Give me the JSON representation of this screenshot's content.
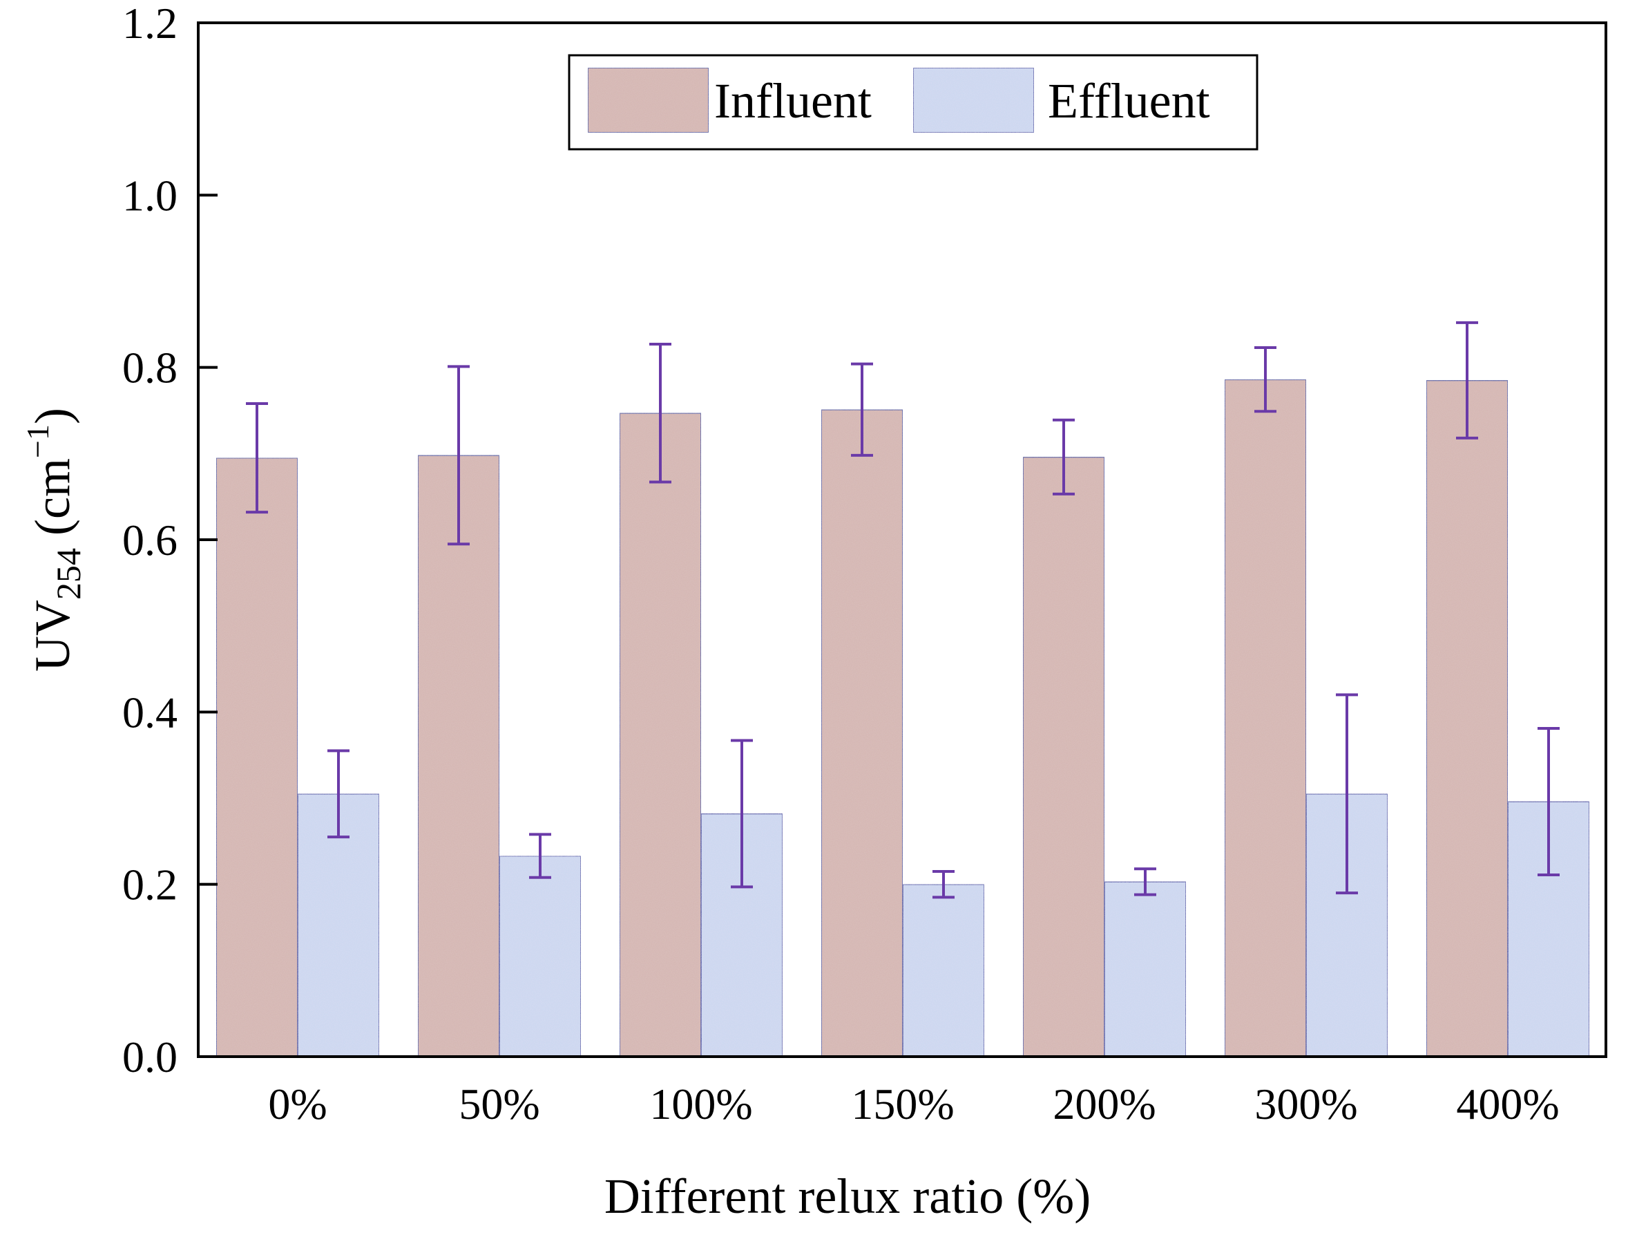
{
  "chart_data": {
    "type": "bar",
    "xlabel": "Different relux ratio (%)",
    "ylabel": {
      "main": "UV",
      "subscript": "254",
      "unit_open": " (cm",
      "unit_superscript": "−1",
      "unit_close": ")"
    },
    "categories": [
      "0%",
      "50%",
      "100%",
      "150%",
      "200%",
      "300%",
      "400%"
    ],
    "ylim": [
      0.0,
      1.2
    ],
    "yticks": [
      "0.0",
      "0.2",
      "0.4",
      "0.6",
      "0.8",
      "1.0",
      "1.2"
    ],
    "ytick_values": [
      0.0,
      0.2,
      0.4,
      0.6,
      0.8,
      1.0,
      1.2
    ],
    "grid": false,
    "legend_position": "top-center",
    "error_bar_color": "#6a3aa8",
    "series": [
      {
        "name": "Influent",
        "color": "#d4b4b0",
        "values": [
          0.695,
          0.698,
          0.747,
          0.751,
          0.696,
          0.786,
          0.785
        ],
        "errors": [
          0.063,
          0.103,
          0.08,
          0.053,
          0.043,
          0.037,
          0.067
        ]
      },
      {
        "name": "Effluent",
        "color": "#c8d8f0",
        "values": [
          0.305,
          0.233,
          0.282,
          0.2,
          0.203,
          0.305,
          0.296
        ],
        "errors": [
          0.05,
          0.025,
          0.085,
          0.015,
          0.015,
          0.115,
          0.085
        ]
      }
    ]
  }
}
